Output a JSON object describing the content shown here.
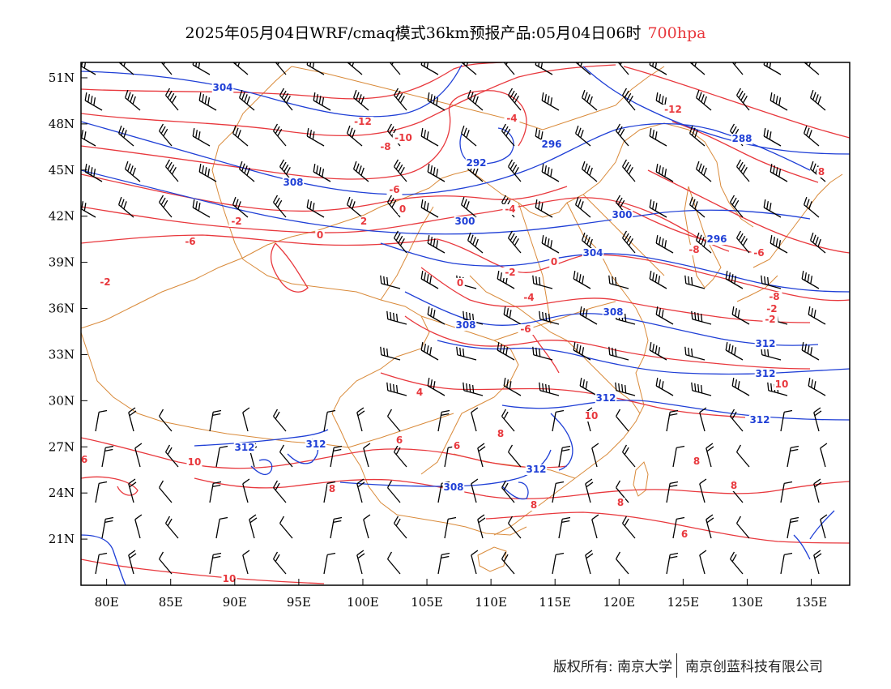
{
  "title": {
    "main": "2025年05月04日WRF/cmaq模式36km预报产品:05月04日06时",
    "level": "700hpa",
    "level_color": "#e8383d"
  },
  "axes": {
    "x_ticks": [
      "80E",
      "85E",
      "90E",
      "95E",
      "100E",
      "105E",
      "110E",
      "115E",
      "120E",
      "125E",
      "130E",
      "135E"
    ],
    "y_ticks": [
      "51N",
      "48N",
      "45N",
      "42N",
      "39N",
      "36N",
      "33N",
      "30N",
      "27N",
      "24N",
      "21N"
    ]
  },
  "colors": {
    "temperature": "#e8383d",
    "geopotential": "#1f3fd6",
    "border": "#d98a3a",
    "wind": "#000000"
  },
  "map": {
    "lon_range": [
      78,
      138
    ],
    "lat_range": [
      18,
      52
    ],
    "height_labels": [
      "304",
      "308",
      "292",
      "296",
      "288",
      "300",
      "300",
      "304",
      "296",
      "308",
      "308",
      "312",
      "312",
      "312",
      "312",
      "312",
      "312",
      "308",
      "312"
    ],
    "temperature_labels": [
      "-6",
      "-12",
      "-8",
      "-10",
      "-4",
      "-12",
      "-6",
      "-4",
      "-2",
      "-2",
      "2",
      "0",
      "-6",
      "-8",
      "0",
      "-2",
      "0",
      "-6",
      "-8",
      "-4",
      "-2",
      "0",
      "4",
      "6",
      "6",
      "8",
      "10",
      "10",
      "8",
      "8",
      "8",
      "6",
      "8",
      "10",
      "8",
      "8",
      "10",
      "-2",
      "6"
    ]
  },
  "footer": {
    "copyright": "版权所有: 南京大学",
    "company": "南京创蓝科技有限公司"
  }
}
